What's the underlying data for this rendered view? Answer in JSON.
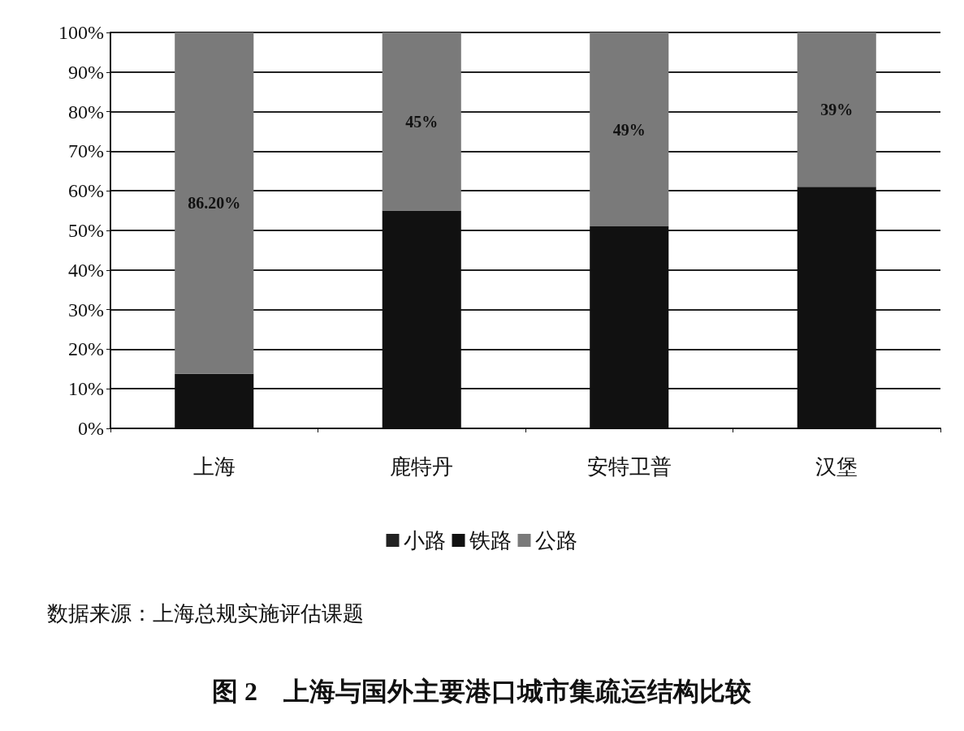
{
  "chart_data": {
    "type": "bar",
    "title": "图 2　上海与国外主要港口城市集疏运结构比较",
    "annotations": [
      "数据来源：上海总规实施评估课题"
    ],
    "categories": [
      "上海",
      "鹿特丹",
      "安特卫普",
      "汉堡"
    ],
    "stacked": true,
    "series": [
      {
        "name": "小路",
        "color": "#222222",
        "values": [
          null,
          null,
          null,
          null
        ]
      },
      {
        "name": "铁路",
        "color": "#111111",
        "values": [
          13.8,
          55,
          51,
          61
        ]
      },
      {
        "name": "公路",
        "color": "#7a7a7a",
        "values": [
          86.2,
          45,
          49,
          39
        ],
        "value_labels": [
          "86.20%",
          "45%",
          "49%",
          "39%"
        ]
      }
    ],
    "ylim": [
      0,
      100
    ],
    "yticks": [
      {
        "value": 0,
        "label": "0%"
      },
      {
        "value": 10,
        "label": "10%"
      },
      {
        "value": 20,
        "label": "20%"
      },
      {
        "value": 30,
        "label": "30%"
      },
      {
        "value": 40,
        "label": "40%"
      },
      {
        "value": 50,
        "label": "50%"
      },
      {
        "value": 60,
        "label": "60%"
      },
      {
        "value": 70,
        "label": "70%"
      },
      {
        "value": 80,
        "label": "80%"
      },
      {
        "value": 90,
        "label": "90%"
      },
      {
        "value": 100,
        "label": "100%"
      }
    ],
    "grid": "y",
    "legend": "bottom"
  }
}
